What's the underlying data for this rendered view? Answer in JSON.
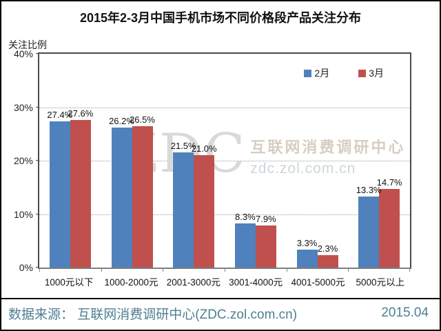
{
  "title": "2015年2-3月中国手机市场不同价格段产品关注分布",
  "y_axis_label": "关注比例",
  "chart_data": {
    "type": "bar",
    "title": "2015年2-3月中国手机市场不同价格段产品关注分布",
    "categories": [
      "1000元以下",
      "1000-2000元",
      "2001-3000元",
      "3001-4000元",
      "4001-5000元",
      "5000元以上"
    ],
    "series": [
      {
        "name": "2月",
        "color": "#4F81BD",
        "values": [
          27.4,
          26.2,
          21.5,
          8.3,
          3.3,
          13.3
        ]
      },
      {
        "name": "3月",
        "color": "#C0504D",
        "values": [
          27.6,
          26.5,
          21.0,
          7.9,
          2.3,
          14.7
        ]
      }
    ],
    "ylabel": "关注比例",
    "ylim": [
      0,
      40
    ],
    "yticks": [
      "40%",
      "30%",
      "20%",
      "10%",
      "0%"
    ],
    "grid": "horizontal-dotted",
    "legend_position": "top-right-inside",
    "value_label_format": "0.0%"
  },
  "watermark": {
    "logo": "ZDC",
    "line1": "互联网消费调研中心",
    "line2": "zdc.zol.com.cn"
  },
  "footer": {
    "source": "数据来源： 互联网消费调研中心(ZDC.zol.com.cn)",
    "date": "2015.04",
    "color": "#4e7f91"
  }
}
